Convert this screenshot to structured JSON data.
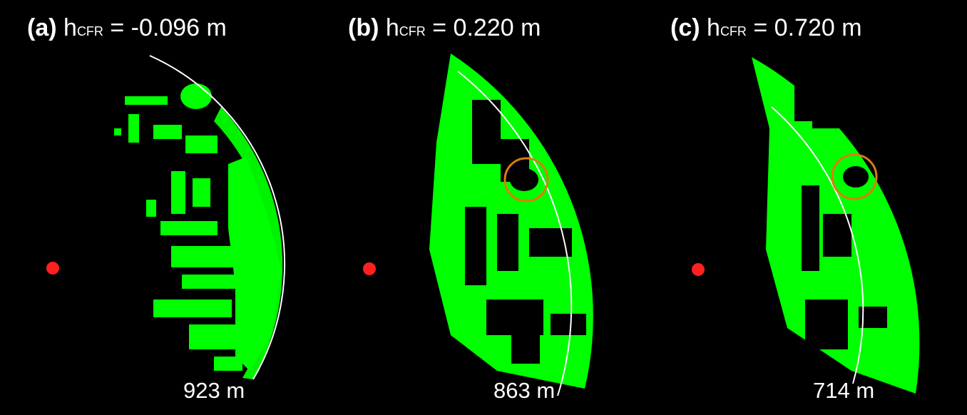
{
  "colors": {
    "background": "#000000",
    "detection": "#00ff00",
    "radar": "#ff2020",
    "range_arc": "#ffffff",
    "highlight": "#e07a10"
  },
  "panels": [
    {
      "id": "a",
      "label": "(a)",
      "h_main": "h",
      "h_sub": "CFR",
      "eq": " = -0.096 m",
      "range_label": "923 m",
      "highlight": false
    },
    {
      "id": "b",
      "label": "(b)",
      "h_main": "h",
      "h_sub": "CFR",
      "eq": " = 0.220 m",
      "range_label": "863 m",
      "highlight": true
    },
    {
      "id": "c",
      "label": "(c)",
      "h_main": "h",
      "h_sub": "CFR",
      "eq": " = 0.720 m",
      "range_label": "714 m",
      "highlight": true
    }
  ]
}
